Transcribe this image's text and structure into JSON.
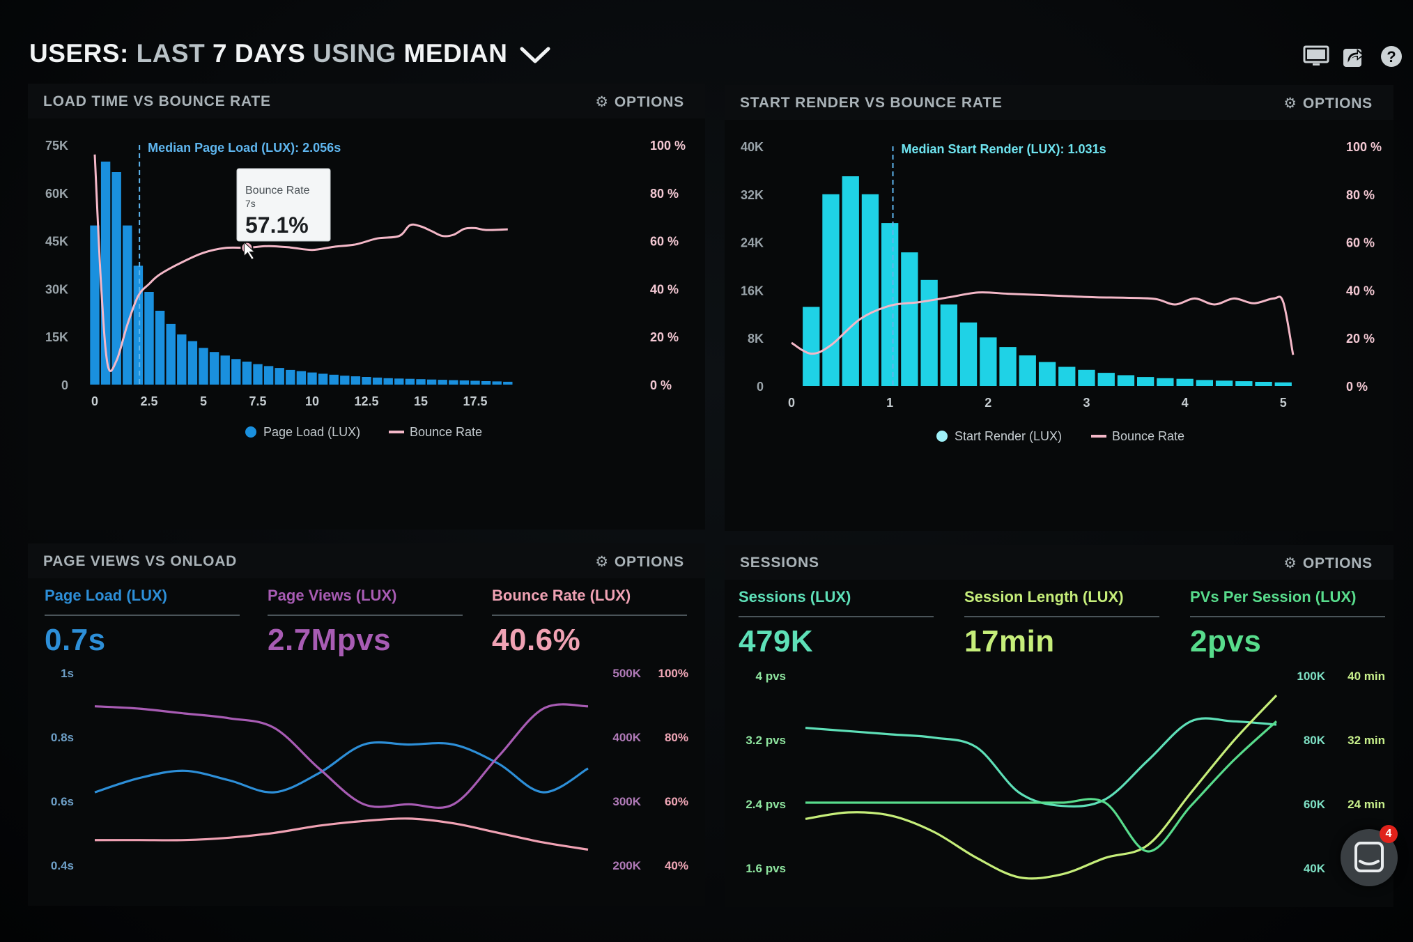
{
  "header": {
    "title_users": "USERS:",
    "title_last": "LAST",
    "title_days": "7 DAYS",
    "title_using": "USING",
    "title_median": "MEDIAN",
    "icons": [
      "monitor-icon",
      "share-icon",
      "help-icon"
    ]
  },
  "panels": {
    "load_time": {
      "title": "LOAD TIME VS BOUNCE RATE",
      "options_label": "OPTIONS",
      "median_label": "Median Page Load (LUX): 2.056s",
      "tooltip": {
        "title": "Bounce Rate",
        "sub": "7s",
        "value": "57.1%"
      },
      "legend": [
        "Page Load (LUX)",
        "Bounce Rate"
      ]
    },
    "start_render": {
      "title": "START RENDER VS BOUNCE RATE",
      "options_label": "OPTIONS",
      "median_label": "Median Start Render (LUX): 1.031s",
      "legend": [
        "Start Render (LUX)",
        "Bounce Rate"
      ]
    },
    "page_views": {
      "title": "PAGE VIEWS VS ONLOAD",
      "options_label": "OPTIONS",
      "metrics": [
        {
          "label": "Page Load (LUX)",
          "value": "0.7s",
          "color": "#2d8fd8"
        },
        {
          "label": "Page Views (LUX)",
          "value": "2.7Mpvs",
          "color": "#a85cb4"
        },
        {
          "label": "Bounce Rate (LUX)",
          "value": "40.6%",
          "color": "#f0a2b4"
        }
      ]
    },
    "sessions": {
      "title": "SESSIONS",
      "options_label": "OPTIONS",
      "metrics": [
        {
          "label": "Sessions (LUX)",
          "value": "479K",
          "color": "#5ee0b8"
        },
        {
          "label": "Session Length (LUX)",
          "value": "17min",
          "color": "#c6ee7a"
        },
        {
          "label": "PVs Per Session (LUX)",
          "value": "2pvs",
          "color": "#58dc8c"
        }
      ]
    }
  },
  "chat": {
    "badge_count": "4"
  },
  "chart_data": [
    {
      "type": "bar",
      "title": "LOAD TIME VS BOUNCE RATE",
      "x_ticks": [
        "0",
        "2.5",
        "5",
        "7.5",
        "10",
        "12.5",
        "15",
        "17.5"
      ],
      "y_ticks": [
        "0",
        "15K",
        "30K",
        "45K",
        "60K",
        "75K"
      ],
      "y2_ticks": [
        "0 %",
        "20 %",
        "40 %",
        "60 %",
        "80 %",
        "100 %"
      ],
      "ylim": [
        0,
        75000
      ],
      "y2lim": [
        0,
        100
      ],
      "xlim": [
        0,
        20
      ],
      "bar_width": 0.5,
      "median_x": 2.056,
      "tooltip_x": 7,
      "colors": {
        "bars": "#1a90de",
        "line": "#f4b8c8"
      },
      "series": [
        {
          "name": "Page Load (LUX)",
          "x": [
            0,
            0.5,
            1,
            1.5,
            2,
            2.5,
            3,
            3.5,
            4,
            4.5,
            5,
            5.5,
            6,
            6.5,
            7,
            7.5,
            8,
            8.5,
            9,
            9.5,
            10,
            10.5,
            11,
            11.5,
            12,
            12.5,
            13,
            13.5,
            14,
            14.5,
            15,
            15.5,
            16,
            16.5,
            17,
            17.5,
            18,
            18.5,
            19
          ],
          "values": [
            49800,
            69800,
            66500,
            49800,
            37200,
            29000,
            23100,
            19000,
            15700,
            13600,
            11500,
            10200,
            9100,
            8000,
            7200,
            6400,
            5800,
            5200,
            4600,
            4200,
            3800,
            3400,
            3100,
            2800,
            2600,
            2400,
            2200,
            2000,
            1900,
            1800,
            1700,
            1600,
            1500,
            1400,
            1300,
            1200,
            1100,
            1000,
            900
          ]
        },
        {
          "name": "Bounce Rate",
          "x": [
            0,
            0.3,
            0.6,
            1,
            1.5,
            2,
            2.5,
            3,
            4,
            5,
            6,
            7,
            8,
            9,
            10,
            11,
            12,
            13,
            14,
            14.5,
            15,
            15.5,
            16,
            16.5,
            17,
            17.5,
            18,
            19
          ],
          "values": [
            96,
            40,
            8,
            10,
            25,
            37,
            42,
            46,
            51,
            55,
            57,
            57.1,
            57.8,
            57.2,
            56.2,
            57.5,
            58.5,
            61,
            62,
            66.5,
            66,
            64,
            62,
            62.5,
            65,
            65.3,
            64.5,
            64.8
          ]
        }
      ]
    },
    {
      "type": "bar",
      "title": "START RENDER VS BOUNCE RATE",
      "x_ticks": [
        "0",
        "1",
        "2",
        "3",
        "4",
        "5"
      ],
      "y_ticks": [
        "0",
        "8K",
        "16K",
        "24K",
        "32K",
        "40K"
      ],
      "y2_ticks": [
        "0 %",
        "20 %",
        "40 %",
        "60 %",
        "80 %",
        "100 %"
      ],
      "ylim": [
        0,
        40000
      ],
      "y2lim": [
        0,
        100
      ],
      "xlim": [
        0,
        5.2
      ],
      "bar_width": 0.2,
      "median_x": 1.031,
      "colors": {
        "bars": "#1fd2e6",
        "line": "#f4b8c8"
      },
      "series": [
        {
          "name": "Start Render (LUX)",
          "x": [
            0.2,
            0.4,
            0.6,
            0.8,
            1.0,
            1.2,
            1.4,
            1.6,
            1.8,
            2.0,
            2.2,
            2.4,
            2.6,
            2.8,
            3.0,
            3.2,
            3.4,
            3.6,
            3.8,
            4.0,
            4.2,
            4.4,
            4.6,
            4.8,
            5.0
          ],
          "values": [
            13200,
            32000,
            35000,
            32000,
            27200,
            22300,
            17700,
            13600,
            10600,
            8100,
            6500,
            5100,
            4000,
            3200,
            2700,
            2200,
            1800,
            1500,
            1300,
            1200,
            1000,
            900,
            800,
            700,
            600
          ]
        },
        {
          "name": "Bounce Rate",
          "x": [
            0,
            0.2,
            0.4,
            0.7,
            1.0,
            1.3,
            1.6,
            1.9,
            2.2,
            2.5,
            2.8,
            3.1,
            3.4,
            3.7,
            3.9,
            4.1,
            4.3,
            4.5,
            4.7,
            4.9,
            5.0,
            5.1
          ],
          "values": [
            18,
            13.5,
            17,
            28,
            33.5,
            35,
            37,
            39,
            38.5,
            38,
            37.5,
            37,
            36.8,
            36.3,
            34,
            36.5,
            34,
            36.5,
            34.5,
            36.5,
            35,
            13
          ]
        }
      ]
    },
    {
      "type": "line",
      "title": "PAGE VIEWS VS ONLOAD",
      "y_ticks": [
        "1s",
        "0.8s",
        "0.6s",
        "0.4s"
      ],
      "y2_ticks": [
        "500K",
        "400K",
        "300K",
        "200K"
      ],
      "y3_ticks": [
        "100%",
        "80%",
        "60%",
        "40%"
      ],
      "ylim": [
        0.3,
        1.0
      ],
      "x": [
        0,
        1,
        2,
        3,
        4,
        5,
        6,
        7,
        8,
        9,
        10,
        11
      ],
      "series": [
        {
          "name": "Page Load (LUX)",
          "color": "#2d8fd8",
          "values": [
            0.6,
            0.66,
            0.69,
            0.65,
            0.6,
            0.68,
            0.8,
            0.8,
            0.8,
            0.72,
            0.6,
            0.7
          ]
        },
        {
          "name": "Page Views (LUX)",
          "color": "#a85cb4",
          "values": [
            0.96,
            0.95,
            0.93,
            0.91,
            0.87,
            0.7,
            0.55,
            0.55,
            0.55,
            0.75,
            0.95,
            0.96
          ]
        },
        {
          "name": "Bounce Rate (LUX)",
          "color": "#f0a2b4",
          "values": [
            0.4,
            0.4,
            0.4,
            0.41,
            0.43,
            0.46,
            0.48,
            0.49,
            0.47,
            0.43,
            0.39,
            0.36
          ]
        }
      ]
    },
    {
      "type": "line",
      "title": "SESSIONS",
      "y_ticks": [
        "4 pvs",
        "3.2 pvs",
        "2.4 pvs",
        "1.6 pvs"
      ],
      "y2_ticks": [
        "100K",
        "80K",
        "60K",
        "40K"
      ],
      "y3_ticks": [
        "40 min",
        "32 min",
        "24 min"
      ],
      "ylim": [
        1.0,
        4.0
      ],
      "x": [
        0,
        1,
        2,
        3,
        4,
        5,
        6,
        7,
        8,
        9,
        10,
        11
      ],
      "series": [
        {
          "name": "Sessions (LUX)",
          "color": "#5ee0b8",
          "values": [
            3.2,
            3.15,
            3.1,
            3.05,
            2.9,
            2.2,
            2.0,
            2.1,
            2.7,
            3.3,
            3.3,
            3.25
          ]
        },
        {
          "name": "Session Length (LUX)",
          "color": "#c6ee7a",
          "values": [
            1.8,
            1.9,
            1.85,
            1.6,
            1.2,
            0.9,
            0.95,
            1.2,
            1.4,
            2.2,
            3.0,
            3.7
          ]
        },
        {
          "name": "PVs Per Session (LUX)",
          "color": "#58dc8c",
          "values": [
            2.05,
            2.05,
            2.05,
            2.05,
            2.05,
            2.05,
            2.05,
            2.05,
            1.3,
            2.0,
            2.7,
            3.3
          ]
        }
      ]
    }
  ]
}
